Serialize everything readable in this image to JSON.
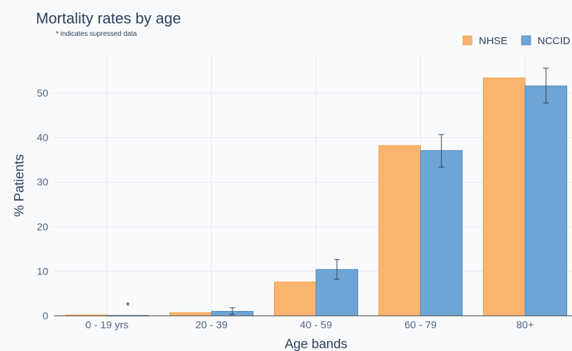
{
  "chart_data": {
    "type": "bar",
    "title": "Mortality rates by age",
    "subtitle": "* indicates supressed data",
    "xlabel": "Age bands",
    "ylabel": "% Patients",
    "categories": [
      "0 - 19 yrs",
      "20 - 39",
      "40 - 59",
      "60 - 79",
      "80+"
    ],
    "ylim": [
      0,
      58
    ],
    "yticks": [
      0,
      10,
      20,
      30,
      40,
      50
    ],
    "grid": true,
    "legend_position": "top-right",
    "series": [
      {
        "name": "NHSE",
        "color": "#f9b46f",
        "values": [
          0.2,
          0.7,
          7.6,
          38.2,
          53.4
        ],
        "error": null
      },
      {
        "name": "NCCID",
        "color": "#6fa5d4",
        "values": [
          0.1,
          1.0,
          10.4,
          37.1,
          51.6
        ],
        "error": [
          [
            0.1,
            0.1
          ],
          [
            0.3,
            1.8
          ],
          [
            8.2,
            12.6
          ],
          [
            33.4,
            40.7
          ],
          [
            47.8,
            55.6
          ]
        ]
      }
    ],
    "annotations": [
      {
        "category": "0 - 19 yrs",
        "series": "NCCID",
        "text": "*"
      }
    ]
  }
}
